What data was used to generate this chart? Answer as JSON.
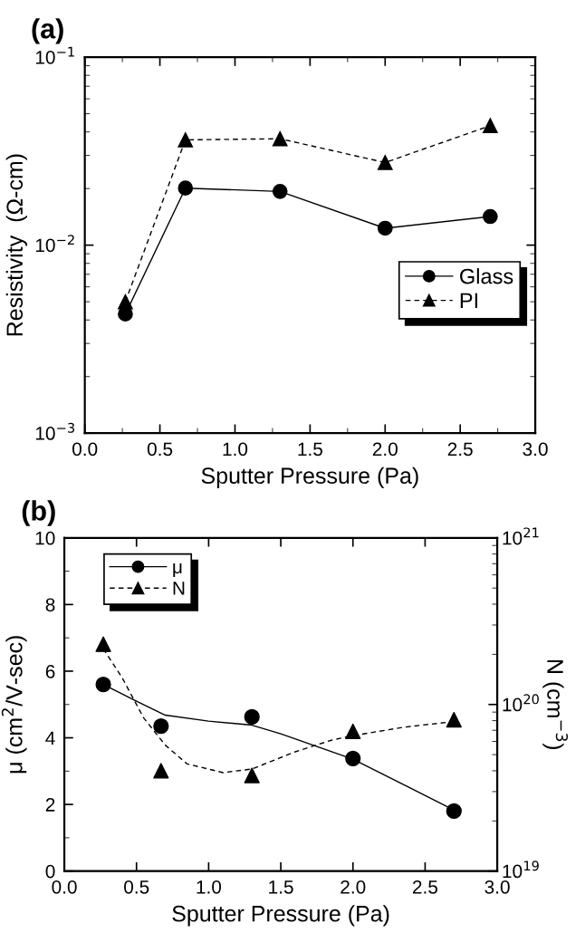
{
  "chart_data": [
    {
      "type": "line",
      "title": "(a)",
      "xlabel": "Sputter Pressure (Pa)",
      "ylabel": "Resistivity  (Ω-cm)",
      "log": "y",
      "x": [
        0.27,
        0.67,
        1.3,
        2.0,
        2.7
      ],
      "xlim": [
        0,
        3
      ],
      "xticks": [
        {
          "value": 0,
          "label": "0.0"
        },
        0.5,
        {
          "value": 1,
          "label": "1.0"
        },
        1.5,
        {
          "value": 2,
          "label": "2.0"
        },
        2.5,
        {
          "value": 3,
          "label": "3.0"
        }
      ],
      "ylim": [
        0.001,
        0.1
      ],
      "yticks": [
        {
          "value": 0.001,
          "label": "10$^{−3}$"
        },
        {
          "value": 0.01,
          "label": "10$^{−2}$"
        },
        {
          "value": 0.1,
          "label": "10$^{−1}$"
        }
      ],
      "grid": false,
      "legend": "right",
      "series": [
        {
          "name": "Glass",
          "color": "#000000",
          "marker": "circle",
          "line_style": "solid",
          "values": [
            0.0043,
            0.0201,
            0.0193,
            0.0123,
            0.0142
          ]
        },
        {
          "name": "PI",
          "color": "#000000",
          "marker": "triangle",
          "line_style": "dashed",
          "values": [
            0.005,
            0.0363,
            0.0368,
            0.0275,
            0.0432
          ]
        }
      ]
    },
    {
      "type": "scatter",
      "title": "(b)",
      "xlabel": "Sputter Pressure (Pa)",
      "ylabel": "μ (cm$^{2}$/V-sec)",
      "y2label": "N (cm$^{−3}$)",
      "log": "y2",
      "x": [
        0.27,
        0.67,
        1.3,
        2.0,
        2.7
      ],
      "xlim": [
        0,
        3
      ],
      "xticks": [
        {
          "value": 0,
          "label": "0.0"
        },
        0.5,
        {
          "value": 1,
          "label": "1.0"
        },
        1.5,
        {
          "value": 2,
          "label": "2.0"
        },
        2.5,
        {
          "value": 3,
          "label": "3.0"
        }
      ],
      "ylim": [
        0,
        10
      ],
      "yticks": [
        0,
        2,
        4,
        6,
        8,
        10
      ],
      "y2lim": [
        1e+19,
        1e+21
      ],
      "y2ticks": [
        {
          "value": 1e+19,
          "label": "10$^{19}$"
        },
        {
          "value": 1e+20,
          "label": "10$^{20}$"
        },
        {
          "value": 1e+21,
          "label": "10$^{21}$"
        }
      ],
      "grid": false,
      "legend": "top left",
      "series": [
        {
          "name": "μ",
          "color": "#000000",
          "marker": "circle",
          "line_style": "solid",
          "values": [
            5.6,
            4.35,
            4.63,
            3.38,
            1.8
          ]
        },
        {
          "name": "N",
          "color": "#000000",
          "marker": "triangle",
          "line_style": "dashed",
          "axis": "y2",
          "values": [
            2.3e+20,
            4e+19,
            3.75e+19,
            6.9e+19,
            8.1e+19
          ]
        },
        {
          "type": "line",
          "color": "#000000",
          "marker": "none",
          "line_style": "solid",
          "x": [
            0.27,
            0.5,
            0.7,
            1.0,
            1.3,
            1.5,
            1.75,
            2.0,
            2.35,
            2.7
          ],
          "values": [
            5.6,
            5.1,
            4.68,
            4.5,
            4.38,
            4.12,
            3.74,
            3.36,
            2.6,
            1.83
          ]
        },
        {
          "type": "line",
          "color": "#000000",
          "marker": "none",
          "line_style": "dashed",
          "axis": "y2",
          "x": [
            0.27,
            0.4,
            0.55,
            0.7,
            0.85,
            1.1,
            1.3,
            1.6,
            1.85,
            2.0,
            2.35,
            2.7
          ],
          "values": [
            2.16e+20,
            1.45e+20,
            8.3e+19,
            5.7e+19,
            4.4e+19,
            3.9e+19,
            4.1e+19,
            5.2e+19,
            6.1e+19,
            6.5e+19,
            7.3e+19,
            7.9e+19
          ]
        }
      ]
    }
  ]
}
